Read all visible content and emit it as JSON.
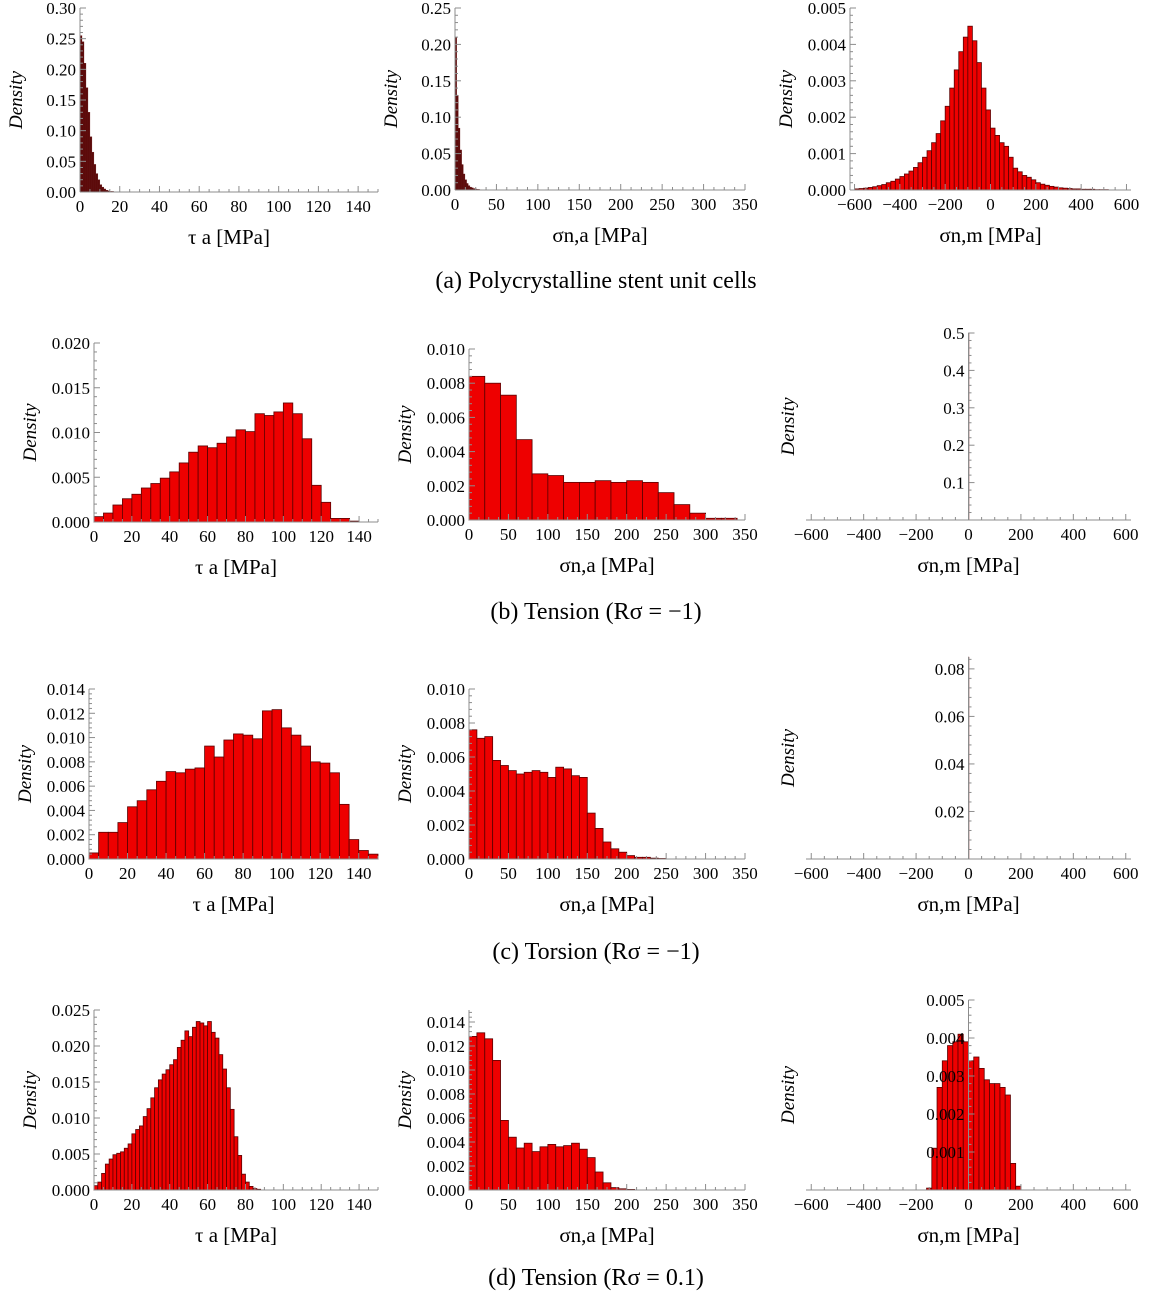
{
  "figure": {
    "captions": [
      "(a) Polycrystalline stent unit cells",
      "(b) Tension (Rσ = −1)",
      "(c) Torsion (Rσ = −1)",
      "(d) Tension (Rσ = 0.1)"
    ]
  },
  "colors": {
    "bar_fill": "#ee0000",
    "bar_stroke": "#5a0000",
    "dense_fill": "#5c0a0a",
    "axis": "#8c8c8c"
  },
  "chart_data": [
    {
      "id": "a1",
      "type": "bar",
      "ylabel": "Density",
      "xlabel": "τ a  [MPa]",
      "xlim": [
        0,
        150
      ],
      "ylim": [
        0,
        0.3
      ],
      "xticks": [
        0,
        20,
        40,
        60,
        80,
        100,
        120,
        140
      ],
      "yticks": [
        0,
        0.05,
        0.1,
        0.15,
        0.2,
        0.25,
        0.3
      ],
      "ytick_labels": [
        "0.00",
        "0.05",
        "0.10",
        "0.15",
        "0.20",
        "0.25",
        "0.30"
      ],
      "bin_width": 1,
      "bin_start": 0,
      "values": [
        0.255,
        0.245,
        0.21,
        0.17,
        0.13,
        0.09,
        0.065,
        0.045,
        0.03,
        0.02,
        0.012,
        0.008,
        0.005,
        0.003,
        0.002,
        0.001,
        0.001
      ],
      "dense": true
    },
    {
      "id": "a2",
      "type": "bar",
      "ylabel": "Density",
      "xlabel": "σn,a [MPa]",
      "xlim": [
        0,
        350
      ],
      "ylim": [
        0,
        0.25
      ],
      "xticks": [
        0,
        50,
        100,
        150,
        200,
        250,
        300,
        350
      ],
      "yticks": [
        0,
        0.05,
        0.1,
        0.15,
        0.2,
        0.25
      ],
      "ytick_labels": [
        "0.00",
        "0.05",
        "0.10",
        "0.15",
        "0.20",
        "0.25"
      ],
      "bin_width": 2,
      "bin_start": 0,
      "values": [
        0.21,
        0.13,
        0.085,
        0.055,
        0.035,
        0.022,
        0.014,
        0.009,
        0.006,
        0.004,
        0.003,
        0.002,
        0.0015,
        0.001,
        0.0008,
        0.0005
      ],
      "dense": true
    },
    {
      "id": "a3",
      "type": "bar",
      "ylabel": "Density",
      "xlabel": "σn,m  [MPa]",
      "xlim": [
        -620,
        620
      ],
      "ylim": [
        0,
        0.005
      ],
      "xticks": [
        -600,
        -400,
        -200,
        0,
        200,
        400,
        600
      ],
      "xtick_labels": [
        "−600",
        "−400",
        "−200",
        "0",
        "200",
        "400",
        "600"
      ],
      "yticks": [
        0,
        0.001,
        0.002,
        0.003,
        0.004,
        0.005
      ],
      "ytick_labels": [
        "0.000",
        "0.001",
        "0.002",
        "0.003",
        "0.004",
        "0.005"
      ],
      "bin_width": 20,
      "bin_start": -600,
      "values": [
        3e-05,
        4e-05,
        5e-05,
        7e-05,
        9e-05,
        0.00012,
        0.00015,
        0.0002,
        0.00024,
        0.0003,
        0.00037,
        0.00044,
        0.00052,
        0.00062,
        0.00075,
        0.0009,
        0.00108,
        0.0013,
        0.00155,
        0.0019,
        0.0023,
        0.0028,
        0.0033,
        0.0038,
        0.0042,
        0.0045,
        0.0041,
        0.0035,
        0.0028,
        0.0022,
        0.0017,
        0.0015,
        0.0013,
        0.0012,
        0.0009,
        0.0006,
        0.0005,
        0.0004,
        0.00035,
        0.00028,
        0.0002,
        0.00016,
        0.00013,
        0.0001,
        8e-05,
        6e-05,
        5e-05,
        4e-05,
        3e-05,
        3e-05,
        2e-05,
        2e-05,
        2e-05,
        1e-05,
        1e-05,
        1e-05
      ]
    },
    {
      "id": "b1",
      "type": "bar",
      "ylabel": "Density",
      "xlabel": "τ a  [MPa]",
      "xlim": [
        0,
        150
      ],
      "ylim": [
        0,
        0.02
      ],
      "xticks": [
        0,
        20,
        40,
        60,
        80,
        100,
        120,
        140
      ],
      "yticks": [
        0,
        0.005,
        0.01,
        0.015,
        0.02
      ],
      "ytick_labels": [
        "0.000",
        "0.005",
        "0.010",
        "0.015",
        "0.020"
      ],
      "bin_width": 5,
      "bin_start": 0,
      "values": [
        0.0006,
        0.001,
        0.0019,
        0.0026,
        0.0031,
        0.0038,
        0.0043,
        0.0049,
        0.0056,
        0.0066,
        0.0078,
        0.0085,
        0.0083,
        0.0088,
        0.0095,
        0.0103,
        0.0101,
        0.0121,
        0.0119,
        0.0123,
        0.0133,
        0.0121,
        0.0093,
        0.0041,
        0.0022,
        0.0004,
        0.0004,
        0.0001
      ]
    },
    {
      "id": "b2",
      "type": "bar",
      "ylabel": "Density",
      "xlabel": "σn,a [MPa]",
      "xlim": [
        0,
        350
      ],
      "ylim": [
        0,
        0.01
      ],
      "xticks": [
        0,
        50,
        100,
        150,
        200,
        250,
        300,
        350
      ],
      "yticks": [
        0,
        0.002,
        0.004,
        0.006,
        0.008,
        0.01
      ],
      "ytick_labels": [
        "0.000",
        "0.002",
        "0.004",
        "0.006",
        "0.008",
        "0.010"
      ],
      "bin_width": 20,
      "bin_start": 0,
      "values": [
        0.0084,
        0.008,
        0.0073,
        0.0047,
        0.0027,
        0.0026,
        0.0022,
        0.0022,
        0.0023,
        0.0022,
        0.0023,
        0.0022,
        0.0016,
        0.0009,
        0.0004,
        0.0001,
        0.0001
      ]
    },
    {
      "id": "b3",
      "type": "bar",
      "ylabel": "Density",
      "xlabel": "σn,m [MPa]",
      "xlim": [
        -620,
        620
      ],
      "ylim": [
        0,
        0.5
      ],
      "xticks": [
        -600,
        -400,
        -200,
        0,
        200,
        400,
        600
      ],
      "xtick_labels": [
        "−600",
        "−400",
        "−200",
        "0",
        "200",
        "400",
        "600"
      ],
      "yticks": [
        0.1,
        0.2,
        0.3,
        0.4,
        0.5
      ],
      "ytick_labels": [
        "0.1",
        "0.2",
        "0.3",
        "0.4",
        "0.5"
      ],
      "bin_width": 2,
      "bin_start": -1,
      "values": [
        0.5
      ],
      "dense": true,
      "yaxis_at_zero": true
    },
    {
      "id": "c1",
      "type": "bar",
      "ylabel": "Density",
      "xlabel": "τ a  [MPa]",
      "xlim": [
        0,
        150
      ],
      "ylim": [
        0,
        0.014
      ],
      "xticks": [
        0,
        20,
        40,
        60,
        80,
        100,
        120,
        140
      ],
      "yticks": [
        0,
        0.002,
        0.004,
        0.006,
        0.008,
        0.01,
        0.012,
        0.014
      ],
      "ytick_labels": [
        "0.000",
        "0.002",
        "0.004",
        "0.006",
        "0.008",
        "0.010",
        "0.012",
        "0.014"
      ],
      "bin_width": 5,
      "bin_start": 0,
      "values": [
        0.0005,
        0.0022,
        0.0022,
        0.003,
        0.0043,
        0.0048,
        0.0057,
        0.0064,
        0.0072,
        0.0071,
        0.0074,
        0.0075,
        0.0093,
        0.0084,
        0.0098,
        0.0103,
        0.0102,
        0.0099,
        0.0122,
        0.0123,
        0.0108,
        0.0102,
        0.0093,
        0.008,
        0.0079,
        0.0071,
        0.0045,
        0.0016,
        0.0007,
        0.0004
      ]
    },
    {
      "id": "c2",
      "type": "bar",
      "ylabel": "Density",
      "xlabel": "σn,a [MPa]",
      "xlim": [
        0,
        350
      ],
      "ylim": [
        0,
        0.01
      ],
      "xticks": [
        0,
        50,
        100,
        150,
        200,
        250,
        300,
        350
      ],
      "yticks": [
        0,
        0.002,
        0.004,
        0.006,
        0.008,
        0.01
      ],
      "ytick_labels": [
        "0.000",
        "0.002",
        "0.004",
        "0.006",
        "0.008",
        "0.010"
      ],
      "bin_width": 10,
      "bin_start": 0,
      "values": [
        0.0076,
        0.0071,
        0.0072,
        0.0058,
        0.0055,
        0.0052,
        0.005,
        0.0051,
        0.0052,
        0.0051,
        0.0048,
        0.0054,
        0.0053,
        0.0049,
        0.0048,
        0.0027,
        0.0018,
        0.001,
        0.0006,
        0.0004,
        0.0002,
        0.0001,
        0.0001,
        5e-05,
        3e-05
      ]
    },
    {
      "id": "c3",
      "type": "bar",
      "ylabel": "Density",
      "xlabel": "σn,m [MPa]",
      "xlim": [
        -620,
        620
      ],
      "ylim": [
        0,
        0.085
      ],
      "xticks": [
        -600,
        -400,
        -200,
        0,
        200,
        400,
        600
      ],
      "xtick_labels": [
        "−600",
        "−400",
        "−200",
        "0",
        "200",
        "400",
        "600"
      ],
      "yticks": [
        0.02,
        0.04,
        0.06,
        0.08
      ],
      "ytick_labels": [
        "0.02",
        "0.04",
        "0.06",
        "0.08"
      ],
      "bin_width": 2,
      "bin_start": -1,
      "values": [
        0.085
      ],
      "dense": true,
      "yaxis_at_zero": true
    },
    {
      "id": "d1",
      "type": "bar",
      "ylabel": "Density",
      "xlabel": "τ a  [MPa]",
      "xlim": [
        0,
        150
      ],
      "ylim": [
        0,
        0.025
      ],
      "xticks": [
        0,
        20,
        40,
        60,
        80,
        100,
        120,
        140
      ],
      "yticks": [
        0,
        0.005,
        0.01,
        0.015,
        0.02,
        0.025
      ],
      "ytick_labels": [
        "0.000",
        "0.005",
        "0.010",
        "0.015",
        "0.020",
        "0.025"
      ],
      "bin_width": 2,
      "bin_start": 0,
      "values": [
        0.0006,
        0.0011,
        0.0023,
        0.0036,
        0.0043,
        0.0049,
        0.0051,
        0.0053,
        0.0058,
        0.0064,
        0.0078,
        0.0084,
        0.0089,
        0.0102,
        0.0113,
        0.0128,
        0.0142,
        0.0153,
        0.0161,
        0.0167,
        0.0174,
        0.0181,
        0.0198,
        0.0208,
        0.0221,
        0.0213,
        0.0226,
        0.0234,
        0.0232,
        0.0228,
        0.0234,
        0.0219,
        0.0211,
        0.0188,
        0.0168,
        0.0142,
        0.0112,
        0.0074,
        0.0048,
        0.0022,
        0.0011,
        0.0005,
        0.0002,
        0.0001
      ]
    },
    {
      "id": "d2",
      "type": "bar",
      "ylabel": "Density",
      "xlabel": "σn,a [MPa]",
      "xlim": [
        0,
        350
      ],
      "ylim": [
        0,
        0.015
      ],
      "xticks": [
        0,
        50,
        100,
        150,
        200,
        250,
        300,
        350
      ],
      "yticks": [
        0,
        0.002,
        0.004,
        0.006,
        0.008,
        0.01,
        0.012,
        0.014
      ],
      "ytick_labels": [
        "0.000",
        "0.002",
        "0.004",
        "0.006",
        "0.008",
        "0.010",
        "0.012",
        "0.014"
      ],
      "bin_width": 10,
      "bin_start": 0,
      "values": [
        0.0128,
        0.0131,
        0.0126,
        0.0108,
        0.0058,
        0.0044,
        0.0035,
        0.0039,
        0.0032,
        0.0036,
        0.0038,
        0.0036,
        0.0037,
        0.0039,
        0.0034,
        0.0027,
        0.0015,
        0.0006,
        0.0002,
        0.0001,
        5e-05
      ]
    },
    {
      "id": "d3",
      "type": "bar",
      "ylabel": "Density",
      "xlabel": "σn,m [MPa]",
      "xlim": [
        -620,
        620
      ],
      "ylim": [
        0,
        0.005
      ],
      "xticks": [
        -600,
        -400,
        -200,
        0,
        200,
        400,
        600
      ],
      "xtick_labels": [
        "−600",
        "−400",
        "−200",
        "0",
        "200",
        "400",
        "600"
      ],
      "yticks": [
        0.001,
        0.002,
        0.003,
        0.004,
        0.005
      ],
      "ytick_labels": [
        "0.001",
        "0.002",
        "0.003",
        "0.004",
        "0.005"
      ],
      "bin_width": 20,
      "bin_start": -160,
      "values": [
        5e-05,
        0.0011,
        0.0027,
        0.0034,
        0.0038,
        0.0039,
        0.0041,
        0.0039,
        0.0034,
        0.0035,
        0.0032,
        0.0029,
        0.0028,
        0.0028,
        0.0027,
        0.0025,
        0.0007,
        0.0001
      ],
      "yaxis_at_zero": true
    }
  ]
}
